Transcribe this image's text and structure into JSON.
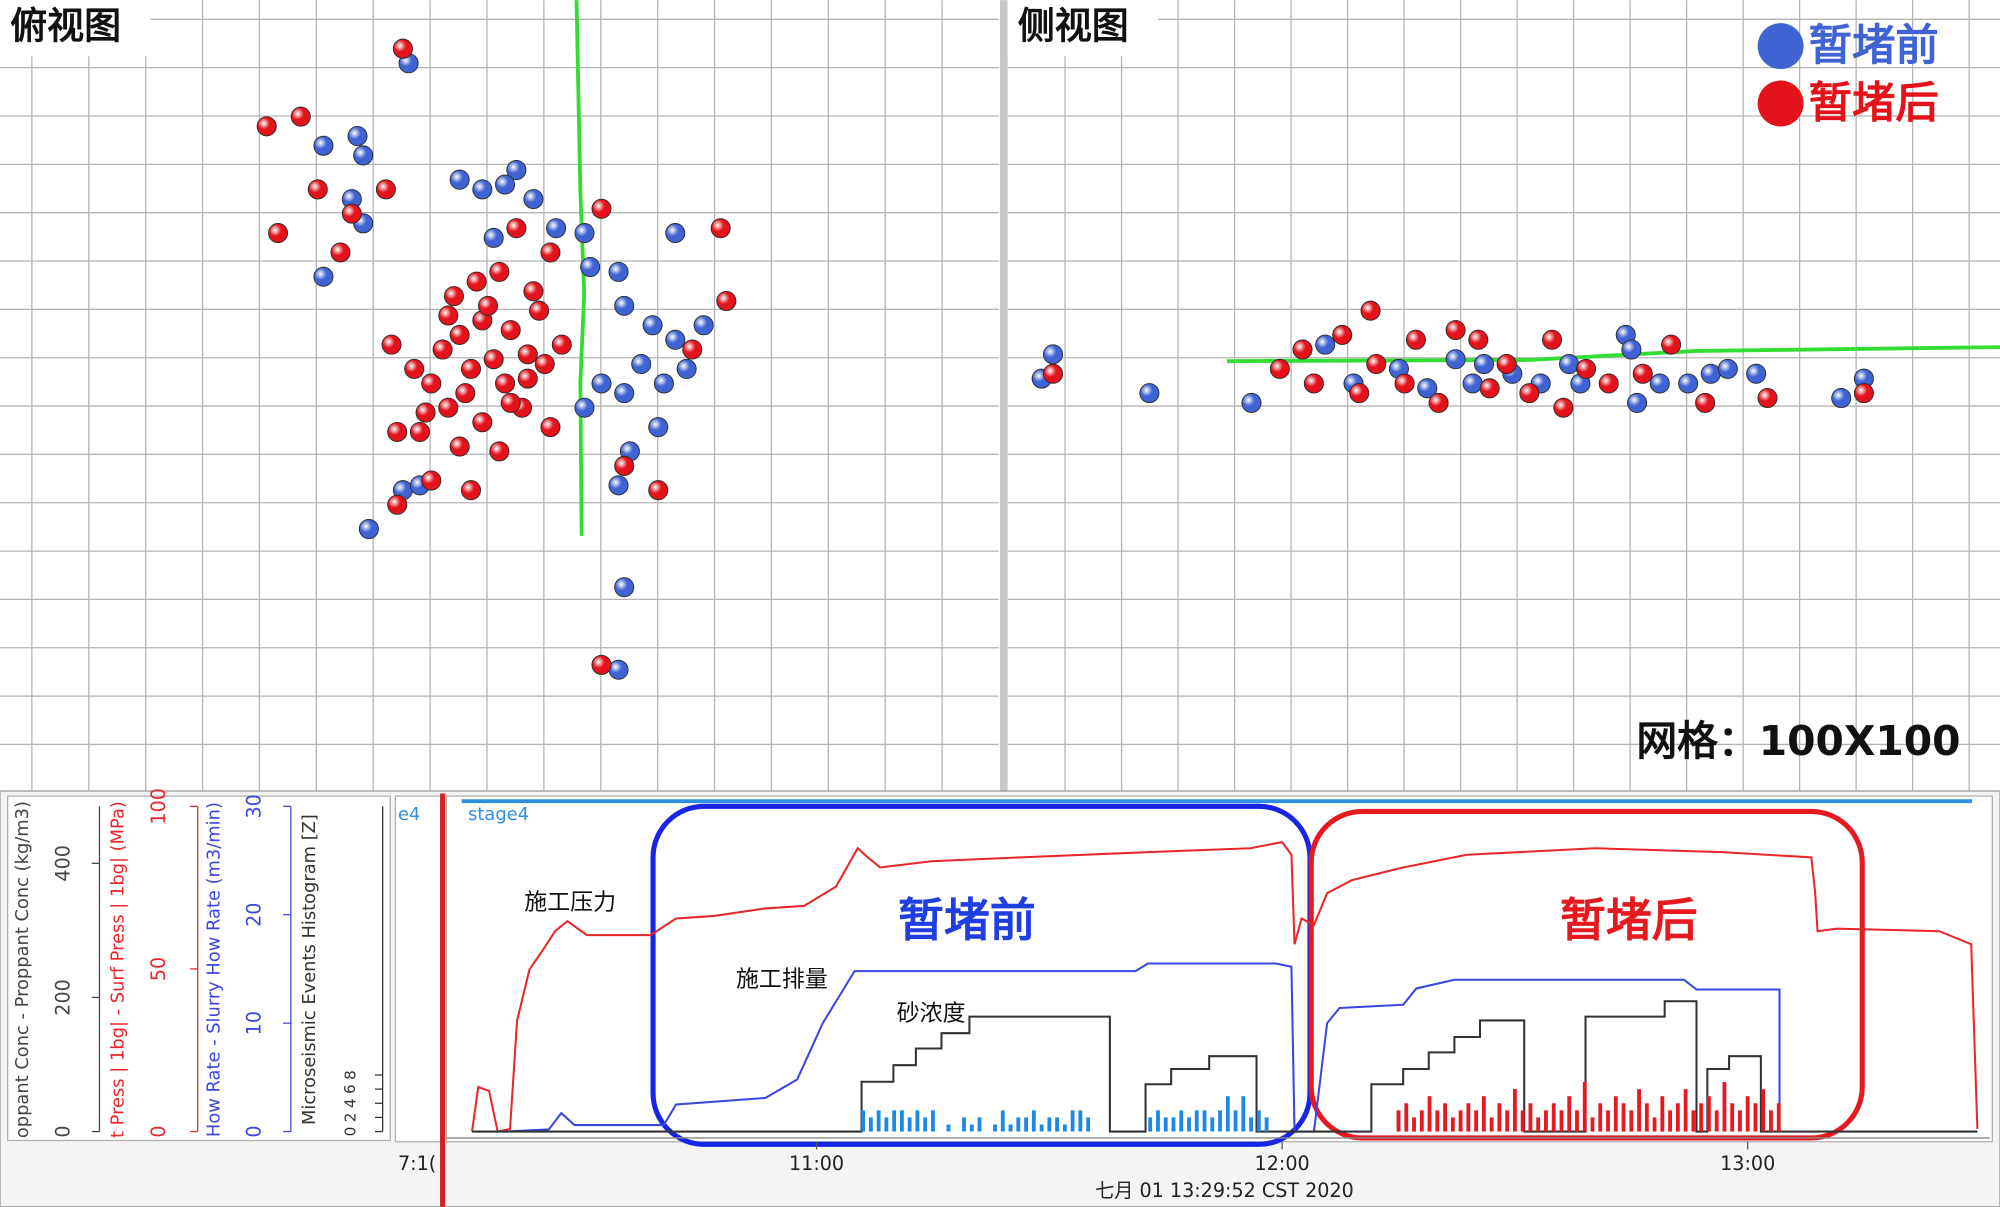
{
  "chart_data": [
    {
      "type": "scatter",
      "title": "俯视图",
      "xlim": [
        0,
        17.6
      ],
      "ylim": [
        0,
        16.3
      ],
      "series": [
        {
          "color": "#3f63d3",
          "x": [
            7.2,
            6.3,
            5.7,
            6.4,
            6.2,
            6.4,
            5.7,
            8.1,
            8.5,
            9.1,
            8.9,
            9.4,
            8.7,
            9.8,
            10.3,
            10.9,
            10.4,
            11.9,
            11.0,
            11.5,
            11.9,
            12.4,
            11.3,
            11.7,
            12.1,
            11.0,
            11.6,
            11.1,
            10.9,
            7.1,
            6.5,
            7.4,
            11.0,
            10.9,
            10.6,
            10.3
          ],
          "values": [
            15.0,
            13.5,
            13.3,
            13.1,
            12.2,
            11.7,
            10.6,
            12.6,
            12.4,
            12.8,
            12.5,
            12.2,
            11.4,
            11.6,
            11.5,
            10.7,
            10.8,
            11.5,
            10.0,
            9.6,
            9.3,
            9.6,
            8.8,
            8.4,
            8.7,
            8.2,
            7.5,
            7.0,
            6.3,
            6.2,
            5.4,
            6.3,
            4.2,
            2.5,
            8.4,
            7.9
          ]
        },
        {
          "color": "#e3121b",
          "x": [
            7.1,
            4.7,
            5.3,
            5.6,
            4.9,
            6.0,
            6.8,
            6.2,
            9.1,
            9.7,
            8.8,
            9.4,
            8.5,
            9.0,
            8.1,
            9.3,
            8.3,
            8.9,
            7.6,
            7.3,
            7.9,
            8.5,
            9.2,
            7.4,
            8.1,
            8.8,
            7.0,
            6.9,
            8.3,
            7.6,
            7.0,
            10.6,
            12.7,
            12.8,
            11.6,
            11.0,
            10.6,
            9.9,
            9.7,
            12.2,
            8.0,
            8.6,
            9.5,
            7.8,
            8.2,
            9.0,
            7.5,
            8.7,
            9.3,
            8.4,
            7.9,
            9.6
          ],
          "values": [
            15.3,
            13.7,
            13.9,
            12.4,
            11.5,
            11.1,
            12.4,
            11.9,
            11.6,
            11.1,
            10.7,
            10.3,
            9.7,
            9.5,
            9.4,
            9.0,
            8.7,
            8.4,
            8.4,
            8.7,
            7.9,
            7.6,
            7.9,
            7.4,
            7.1,
            7.0,
            7.4,
            9.2,
            6.2,
            6.4,
            5.9,
            12.0,
            11.6,
            10.1,
            6.2,
            6.7,
            2.6,
            9.2,
            7.5,
            9.1,
            10.2,
            10.0,
            9.9,
            9.1,
            8.2,
            8.0,
            7.8,
            8.9,
            8.5,
            10.5,
            9.8,
            8.8
          ]
        }
      ]
    },
    {
      "type": "scatter",
      "title": "侧视图",
      "xlim": [
        0,
        17.5
      ],
      "ylim": [
        0,
        16.3
      ],
      "legend": "upper right",
      "annotation": "网格：100X100",
      "series": [
        {
          "name": "暂堵前",
          "color": "#3f63d3",
          "x": [
            0.8,
            0.6,
            2.5,
            4.3,
            5.6,
            6.9,
            7.4,
            7.9,
            8.2,
            8.9,
            9.4,
            10.1,
            10.9,
            11.0,
            11.5,
            12.0,
            12.4,
            12.7,
            13.2,
            11.1,
            14.7,
            15.1,
            6.1,
            8.4,
            9.9
          ],
          "values": [
            9.0,
            8.5,
            8.2,
            8.0,
            9.2,
            8.7,
            8.3,
            8.9,
            8.4,
            8.6,
            8.4,
            8.4,
            9.4,
            9.1,
            8.4,
            8.4,
            8.6,
            8.7,
            8.6,
            8.0,
            8.1,
            8.5,
            8.4,
            8.8,
            8.8
          ]
        },
        {
          "name": "暂堵后",
          "color": "#e3121b",
          "x": [
            0.8,
            5.2,
            5.9,
            6.4,
            7.2,
            7.9,
            8.3,
            9.6,
            4.8,
            5.4,
            6.2,
            7.0,
            7.6,
            8.5,
            9.2,
            9.8,
            10.6,
            11.2,
            11.7,
            12.3,
            13.4,
            15.1,
            8.8,
            10.2,
            6.5
          ],
          "values": [
            8.6,
            9.1,
            9.4,
            9.9,
            9.3,
            9.5,
            9.3,
            9.3,
            8.7,
            8.4,
            8.2,
            8.4,
            8.0,
            8.3,
            8.2,
            7.9,
            8.4,
            8.6,
            9.2,
            8.0,
            8.1,
            8.2,
            8.8,
            8.7,
            8.8
          ]
        }
      ]
    },
    {
      "type": "line",
      "stage_fragment": "e4",
      "stage_label": "stage4",
      "x_fragment": "7:1(",
      "timestamp": "七月 01 13:29:52 CST 2020",
      "xlim": [
        12.3,
        211.2
      ],
      "xticks": [
        {
          "value": 60,
          "label": "11:00"
        },
        {
          "value": 120,
          "label": "12:00"
        },
        {
          "value": 180,
          "label": "13:00"
        }
      ],
      "y_axes": [
        {
          "label": "oppant Conc - Proppant Conc (kg/m3)",
          "color": "#444444",
          "ylim": [
            0,
            485
          ],
          "yticks": [
            0,
            200,
            400
          ]
        },
        {
          "label": "t Press | 1bg| - Surf Press | 1bg| (MPa)",
          "color": "#e8262b",
          "ylim": [
            0,
            100
          ],
          "yticks": [
            0,
            50,
            100
          ]
        },
        {
          "label": "How Rate - Slurry How Rate (m3/min)",
          "color": "#3a46e0",
          "ylim": [
            0,
            30
          ],
          "yticks": [
            0,
            10,
            20,
            30
          ]
        },
        {
          "label": "Microseismic Events Histogram [Z]",
          "color": "#333333",
          "ylim": [
            0,
            46
          ],
          "yticks": [
            0,
            2,
            4,
            6,
            8
          ]
        }
      ],
      "annotations": [
        "施工压力",
        "施工排量",
        "砂浓度",
        "暂堵前",
        "暂堵后"
      ],
      "series": [
        {
          "style": "line",
          "axis": 1,
          "color": "#e8262b",
          "x": [
            15.6,
            16.4,
            17.8,
            18.9,
            20.5,
            21.4,
            23.0,
            24.7,
            26.3,
            27.9,
            30.4,
            38.6,
            41.9,
            46.8,
            53.4,
            58.4,
            62.5,
            65.3,
            66.6,
            68.2,
            74.8,
            86.3,
            102.7,
            115.9,
            120.0,
            121.2,
            121.6,
            122.5,
            124.1,
            125.8,
            129.0,
            135.6,
            143.8,
            160.3,
            176.7,
            188.2,
            188.7,
            189.0,
            191.5,
            204.7,
            208.8,
            209.6
          ],
          "values": [
            0,
            13.7,
            12.5,
            0,
            0.8,
            34.1,
            49.8,
            55.7,
            61.6,
            64.7,
            60.4,
            60.4,
            65.5,
            66.3,
            68.6,
            69.4,
            75.3,
            87.1,
            84.3,
            81.2,
            83.1,
            84.3,
            85.9,
            87.1,
            89.0,
            85.1,
            57.6,
            65.5,
            63.5,
            73.3,
            77.3,
            81.2,
            85.1,
            87.1,
            85.9,
            84.3,
            73.3,
            61.6,
            62.4,
            61.6,
            57.6,
            0.8
          ]
        },
        {
          "style": "line",
          "axis": 2,
          "color": "#3a46e0",
          "x": [
            19.7,
            25.5,
            27.1,
            28.8,
            40.3,
            41.9,
            53.4,
            57.5,
            60.8,
            64.9,
            101.1,
            102.7,
            119.2,
            121.2,
            121.6,
            124.1,
            125.8,
            127.4,
            135.6,
            137.3,
            142.2,
            171.8,
            173.4,
            184.1,
            184.1
          ],
          "values": [
            0,
            0.2,
            1.7,
            0.6,
            0.6,
            2.5,
            3.1,
            4.8,
            10.0,
            14.8,
            14.8,
            15.5,
            15.5,
            15.2,
            0,
            0,
            10.0,
            11.4,
            11.7,
            13.2,
            14.0,
            14.0,
            13.1,
            13.1,
            0
          ]
        },
        {
          "style": "line",
          "axis": 0,
          "color": "#333333",
          "x": [
            15.6,
            65.8,
            65.8,
            69.9,
            69.9,
            72.8,
            72.8,
            76.1,
            76.1,
            79.7,
            79.7,
            97.8,
            97.8,
            102.4,
            102.4,
            105.7,
            105.7,
            110.6,
            110.6,
            116.7,
            116.7,
            131.5,
            131.5,
            135.6,
            135.6,
            138.9,
            138.9,
            142.2,
            142.2,
            145.5,
            145.5,
            151.2,
            151.2,
            159.1,
            159.1,
            169.3,
            169.3,
            173.4,
            173.4,
            174.8,
            174.8,
            177.6,
            177.6,
            181.7,
            181.7,
            209.6
          ],
          "values": [
            0,
            0,
            74.3,
            74.3,
            99.0,
            99.0,
            123.8,
            123.8,
            146.7,
            146.7,
            171.4,
            171.4,
            0,
            0,
            70.5,
            70.5,
            93.3,
            93.3,
            112.4,
            112.4,
            0,
            0,
            70.5,
            70.5,
            93.3,
            93.3,
            118.1,
            118.1,
            141.0,
            141.0,
            165.7,
            165.7,
            0,
            0,
            171.4,
            171.4,
            194.3,
            194.3,
            0,
            0,
            93.3,
            93.3,
            112.4,
            112.4,
            0,
            0
          ]
        },
        {
          "style": "bar",
          "axis": 3,
          "color": "#1e88e5",
          "x": [
            66,
            67,
            68,
            69,
            70,
            71,
            72,
            73,
            74,
            75,
            77,
            79,
            80,
            81,
            83,
            84,
            85,
            86,
            87,
            88,
            89,
            90,
            91,
            92,
            93,
            94,
            95,
            103,
            104,
            105,
            106,
            107,
            108,
            109,
            110,
            111,
            112,
            113,
            114,
            115,
            116,
            117,
            118
          ],
          "values": [
            3,
            2,
            3,
            2,
            3,
            3,
            2,
            3,
            2,
            3,
            1,
            2,
            1,
            2,
            1,
            3,
            1,
            2,
            2,
            3,
            1,
            2,
            2,
            1,
            3,
            3,
            2,
            2,
            3,
            2,
            2,
            3,
            2,
            3,
            3,
            2,
            3,
            5,
            3,
            5,
            2,
            3,
            2
          ]
        },
        {
          "style": "bar",
          "axis": 3,
          "color": "#e5191f",
          "x": [
            135,
            136,
            137,
            138,
            139,
            140,
            141,
            142,
            143,
            144,
            145,
            146,
            147,
            148,
            149,
            150,
            151,
            152,
            153,
            154,
            155,
            156,
            157,
            158,
            159,
            160,
            161,
            162,
            163,
            164,
            165,
            166,
            167,
            168,
            169,
            170,
            171,
            172,
            173,
            174,
            175,
            176,
            177,
            178,
            179,
            180,
            181,
            182,
            183,
            184
          ],
          "values": [
            3,
            4,
            2,
            3,
            5,
            3,
            4,
            2,
            3,
            4,
            3,
            5,
            2,
            4,
            3,
            6,
            3,
            4,
            2,
            3,
            4,
            3,
            5,
            3,
            7,
            2,
            4,
            3,
            5,
            4,
            3,
            6,
            4,
            2,
            5,
            3,
            4,
            6,
            3,
            4,
            5,
            3,
            7,
            4,
            3,
            5,
            4,
            6,
            3,
            4
          ]
        }
      ]
    }
  ]
}
